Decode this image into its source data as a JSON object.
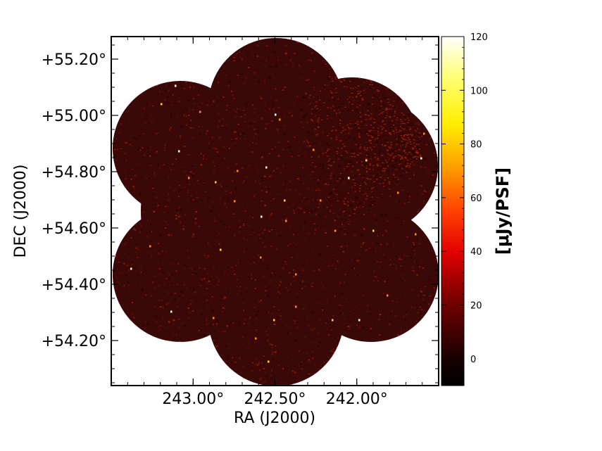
{
  "chart_data": {
    "type": "heatmap",
    "title": "",
    "xlabel": "RA (J2000)",
    "ylabel": "DEC (J2000)",
    "x_ticks": [
      "243.00°",
      "242.50°",
      "242.00°"
    ],
    "x_tick_values": [
      243.0,
      242.5,
      242.0
    ],
    "y_ticks": [
      "+54.20°",
      "+54.40°",
      "+54.60°",
      "+54.80°",
      "+55.00°",
      "+55.20°"
    ],
    "y_tick_values": [
      54.2,
      54.4,
      54.6,
      54.8,
      55.0,
      55.2
    ],
    "xlim": [
      243.5,
      241.5
    ],
    "ylim": [
      54.04,
      55.28
    ],
    "colorbar": {
      "label": "[μJy/PSF]",
      "ticks": [
        "0",
        "20",
        "40",
        "60",
        "80",
        "100",
        "120"
      ],
      "tick_values": [
        0,
        20,
        40,
        60,
        80,
        100,
        120
      ],
      "range": [
        -10,
        120
      ],
      "colormap": "afmhot"
    },
    "colors": {
      "background": "#3a0806",
      "noise_bright": "#b4200a"
    }
  }
}
